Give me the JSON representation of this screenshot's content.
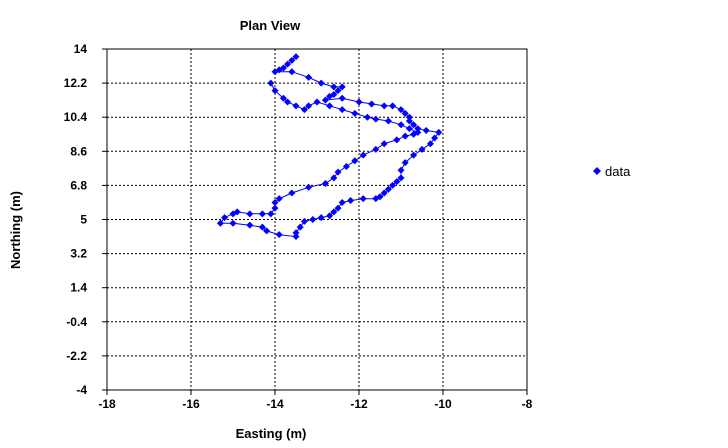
{
  "chart_data": {
    "type": "scatter",
    "title": "Plan View",
    "xlabel": "Easting (m)",
    "ylabel": "Northing (m)",
    "xlim": [
      -18,
      -8
    ],
    "ylim": [
      -4,
      14
    ],
    "xticks": [
      -18,
      -16,
      -14,
      -12,
      -10,
      -8
    ],
    "yticks": [
      -4,
      -2.2,
      -0.4,
      1.4,
      3.2,
      5,
      6.8,
      8.6,
      10.4,
      12.2,
      14
    ],
    "xtick_labels": [
      "-18",
      "-16",
      "-14",
      "-12",
      "-10",
      "-8"
    ],
    "ytick_labels": [
      "-4",
      "-2.2",
      "-0.4",
      "1.4",
      "3.2",
      "5",
      "6.8",
      "8.6",
      "10.4",
      "12.2",
      "14"
    ],
    "grid": true,
    "legend_position": "right",
    "series": [
      {
        "name": "data",
        "color": "#0000ff",
        "marker": "diamond",
        "line": true,
        "points": [
          [
            -13.5,
            13.6
          ],
          [
            -13.6,
            13.4
          ],
          [
            -13.7,
            13.2
          ],
          [
            -13.8,
            13.0
          ],
          [
            -13.9,
            12.9
          ],
          [
            -14.0,
            12.8
          ],
          [
            -13.6,
            12.8
          ],
          [
            -13.2,
            12.5
          ],
          [
            -12.9,
            12.2
          ],
          [
            -12.6,
            12.0
          ],
          [
            -12.4,
            12.0
          ],
          [
            -12.5,
            11.8
          ],
          [
            -12.6,
            11.6
          ],
          [
            -12.7,
            11.5
          ],
          [
            -12.8,
            11.3
          ],
          [
            -12.4,
            11.4
          ],
          [
            -12.0,
            11.2
          ],
          [
            -11.7,
            11.1
          ],
          [
            -11.4,
            11.0
          ],
          [
            -11.2,
            11.0
          ],
          [
            -11.0,
            10.8
          ],
          [
            -10.9,
            10.6
          ],
          [
            -10.8,
            10.4
          ],
          [
            -10.8,
            10.2
          ],
          [
            -10.7,
            10.0
          ],
          [
            -10.6,
            9.8
          ],
          [
            -10.4,
            9.7
          ],
          [
            -10.1,
            9.6
          ],
          [
            -10.2,
            9.3
          ],
          [
            -10.3,
            9.0
          ],
          [
            -10.5,
            8.7
          ],
          [
            -10.7,
            8.4
          ],
          [
            -10.9,
            8.0
          ],
          [
            -11.0,
            7.6
          ],
          [
            -11.0,
            7.2
          ],
          [
            -11.1,
            7.0
          ],
          [
            -11.2,
            6.8
          ],
          [
            -11.3,
            6.6
          ],
          [
            -11.4,
            6.4
          ],
          [
            -11.5,
            6.2
          ],
          [
            -11.6,
            6.1
          ],
          [
            -11.9,
            6.1
          ],
          [
            -12.2,
            6.0
          ],
          [
            -12.4,
            5.9
          ],
          [
            -12.5,
            5.6
          ],
          [
            -12.6,
            5.4
          ],
          [
            -12.7,
            5.2
          ],
          [
            -12.9,
            5.1
          ],
          [
            -13.1,
            5.0
          ],
          [
            -13.3,
            4.9
          ],
          [
            -13.4,
            4.6
          ],
          [
            -13.5,
            4.3
          ],
          [
            -13.5,
            4.1
          ],
          [
            -13.9,
            4.2
          ],
          [
            -14.2,
            4.4
          ],
          [
            -14.3,
            4.6
          ],
          [
            -14.6,
            4.7
          ],
          [
            -15.0,
            4.8
          ],
          [
            -15.3,
            4.8
          ],
          [
            -15.2,
            5.1
          ],
          [
            -15.0,
            5.3
          ],
          [
            -14.9,
            5.4
          ],
          [
            -14.6,
            5.3
          ],
          [
            -14.3,
            5.3
          ],
          [
            -14.1,
            5.3
          ],
          [
            -14.0,
            5.6
          ],
          [
            -14.0,
            5.9
          ],
          [
            -13.9,
            6.1
          ],
          [
            -13.6,
            6.4
          ],
          [
            -13.2,
            6.7
          ],
          [
            -12.8,
            6.9
          ],
          [
            -12.6,
            7.2
          ],
          [
            -12.5,
            7.5
          ],
          [
            -12.3,
            7.8
          ],
          [
            -12.1,
            8.1
          ],
          [
            -11.9,
            8.4
          ],
          [
            -11.6,
            8.7
          ],
          [
            -11.4,
            9.0
          ],
          [
            -11.1,
            9.2
          ],
          [
            -10.9,
            9.4
          ],
          [
            -10.7,
            9.5
          ],
          [
            -10.6,
            9.6
          ],
          [
            -10.8,
            9.8
          ],
          [
            -11.0,
            10.0
          ],
          [
            -11.3,
            10.2
          ],
          [
            -11.6,
            10.3
          ],
          [
            -11.8,
            10.4
          ],
          [
            -12.1,
            10.6
          ],
          [
            -12.4,
            10.8
          ],
          [
            -12.7,
            11.0
          ],
          [
            -13.0,
            11.2
          ],
          [
            -13.2,
            11.0
          ],
          [
            -13.3,
            10.8
          ],
          [
            -13.5,
            11.0
          ],
          [
            -13.7,
            11.2
          ],
          [
            -13.8,
            11.4
          ],
          [
            -14.0,
            11.8
          ],
          [
            -14.1,
            12.2
          ]
        ]
      }
    ]
  }
}
